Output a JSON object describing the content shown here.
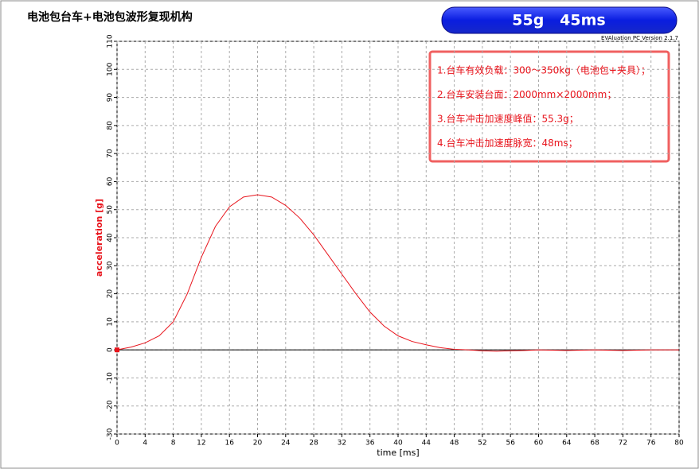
{
  "chart_data": {
    "type": "line",
    "title": "电池包台车+电池包波形复现机构",
    "badge": "55g   45ms",
    "version_note": "EVAluation PC Version 2.1.7",
    "xlabel": "time [ms]",
    "ylabel": "acceleration [g]",
    "x": [
      0,
      2,
      4,
      6,
      8,
      10,
      12,
      14,
      16,
      18,
      20,
      22,
      24,
      26,
      28,
      30,
      32,
      34,
      36,
      38,
      40,
      42,
      44,
      46,
      48,
      50,
      52,
      54,
      56,
      58,
      60,
      64,
      68,
      72,
      76,
      80
    ],
    "series": [
      {
        "name": "acceleration",
        "color": "#e8141c",
        "values": [
          0,
          1,
          2.5,
          5,
          10,
          20,
          33,
          44,
          51,
          54.5,
          55.3,
          54.5,
          51.5,
          47,
          41,
          34,
          27,
          20,
          13.5,
          8.5,
          5,
          3,
          1.8,
          0.8,
          0.2,
          0,
          -0.3,
          -0.5,
          -0.3,
          -0.2,
          0,
          -0.2,
          0,
          -0.2,
          0,
          0
        ]
      }
    ],
    "xlim": [
      0,
      80
    ],
    "xticks": [
      0,
      4,
      8,
      12,
      16,
      20,
      24,
      28,
      32,
      36,
      40,
      44,
      48,
      52,
      56,
      60,
      64,
      68,
      72,
      76,
      80
    ],
    "ylim": [
      -30,
      110
    ],
    "yticks": [
      -30,
      -20,
      -10,
      0,
      10,
      20,
      30,
      40,
      50,
      60,
      70,
      80,
      90,
      100,
      110
    ],
    "grid": true,
    "annotations": [
      "1.台车有效负载：300～350kg（电池包+夹具）；",
      "2.台车安装台面：2000mm×2000mm；",
      "3.台车冲击加速度峰值：55.3g；",
      "4.台车冲击加速度脉宽：48ms；"
    ]
  }
}
